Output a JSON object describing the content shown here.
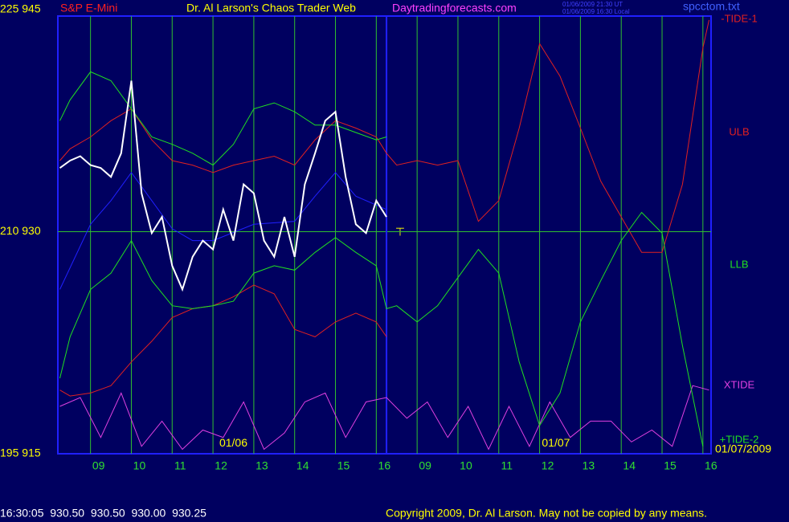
{
  "chart_data": {
    "type": "line",
    "symbol": "S&P E-Mini",
    "title": "Dr. Al Larson's Chaos Trader Web",
    "site": "Daytradingforecasts.com",
    "timestamps": [
      "01/06/2009 21:30 UT",
      "01/06/2009 16:30 Local"
    ],
    "file": "spcctom.txt",
    "date": "01/07/2009",
    "annotations": [
      {
        "x": 12.5,
        "y": 915.7,
        "text": "01/06"
      },
      {
        "x": 20.4,
        "y": 915.7,
        "text": "01/07"
      }
    ],
    "xlim": [
      8.2,
      24.2
    ],
    "ylim": [
      915,
      945
    ],
    "yticks": [
      {
        "value": 915,
        "label": "195 915"
      },
      {
        "value": 930,
        "label": "210 930"
      },
      {
        "value": 945,
        "label": "225 945"
      }
    ],
    "xticks": [
      {
        "value": 9,
        "label": "09"
      },
      10,
      11,
      12,
      13,
      14,
      15,
      16,
      {
        "value": 17,
        "label": "09"
      },
      {
        "value": 18,
        "label": "10"
      },
      {
        "value": 19,
        "label": "11"
      },
      {
        "value": 20,
        "label": "12"
      },
      {
        "value": 21,
        "label": "13"
      },
      {
        "value": 22,
        "label": "14"
      },
      {
        "value": 23,
        "label": "15"
      },
      {
        "value": 24,
        "label": "16"
      }
    ],
    "grid": true,
    "now": 16.25,
    "series": [
      {
        "name": "-TIDE-1",
        "color": "#e02020",
        "x": [
          8.25,
          8.5,
          9,
          9.5,
          10,
          10.5,
          11,
          11.5,
          12,
          12.5,
          13,
          13.5,
          14,
          14.5,
          15,
          15.5,
          16,
          16.25,
          16.5,
          17,
          17.5,
          18,
          18.5,
          19,
          19.5,
          20,
          20.5,
          21,
          21.5,
          22,
          22.5,
          23,
          23.5,
          24,
          24.15
        ],
        "values": [
          934.8,
          935.6,
          936.4,
          937.5,
          938.3,
          936.2,
          934.8,
          934.5,
          934.0,
          934.5,
          934.8,
          935.1,
          934.5,
          936.2,
          937.5,
          937.0,
          936.4,
          935.3,
          934.5,
          934.8,
          934.5,
          934.8,
          930.7,
          932.1,
          937.0,
          942.7,
          940.5,
          937.0,
          933.4,
          931.0,
          928.6,
          928.6,
          933.2,
          942.4,
          944.3
        ]
      },
      {
        "name": "ULB",
        "color": "#e02020",
        "x": [
          8.25,
          8.5,
          9,
          9.5,
          10,
          10.5,
          11,
          11.5,
          12,
          12.5,
          13,
          13.5,
          14,
          14.5,
          15,
          15.5,
          16,
          16.25
        ],
        "values": [
          919.3,
          918.9,
          919.1,
          919.6,
          921.2,
          922.6,
          924.2,
          924.8,
          925.0,
          925.6,
          926.4,
          925.8,
          923.4,
          922.9,
          923.9,
          924.5,
          923.9,
          922.9
        ]
      },
      {
        "name": "LLB",
        "color": "#20e020",
        "x": [
          8.25,
          8.5,
          9,
          9.5,
          10,
          10.5,
          11,
          11.5,
          12,
          12.5,
          13,
          13.5,
          14,
          14.5,
          15,
          15.5,
          16,
          16.25
        ],
        "values": [
          937.5,
          938.9,
          940.8,
          940.2,
          938.3,
          936.4,
          935.9,
          935.3,
          934.5,
          935.9,
          938.3,
          938.7,
          938.1,
          937.2,
          937.2,
          936.7,
          936.2,
          936.4
        ]
      },
      {
        "name": "XTIDE",
        "color": "#e040e0",
        "x": [
          8.25,
          8.75,
          9.25,
          9.75,
          10.25,
          10.75,
          11.25,
          11.75,
          12.25,
          12.75,
          13.25,
          13.75,
          14.25,
          14.75,
          15.25,
          15.75,
          16.25,
          16.75,
          17.25,
          17.75,
          18.25,
          18.75,
          19.25,
          19.75,
          20.25,
          20.75,
          21.25,
          21.75,
          22.25,
          22.75,
          23.25,
          23.75,
          24.15
        ],
        "values": [
          918.2,
          918.8,
          916.1,
          919.1,
          915.5,
          917.2,
          915.3,
          916.6,
          916.1,
          918.5,
          915.3,
          916.4,
          918.5,
          919.1,
          916.1,
          918.5,
          918.8,
          917.4,
          918.5,
          916.1,
          918.2,
          915.3,
          918.2,
          915.5,
          918.5,
          916.1,
          917.2,
          917.2,
          915.8,
          916.6,
          915.5,
          919.6,
          919.3
        ]
      },
      {
        "name": "+TIDE-2",
        "color": "#20e020",
        "x": [
          8.25,
          8.5,
          9,
          9.5,
          10,
          10.5,
          11,
          11.5,
          12,
          12.5,
          13,
          13.5,
          14,
          14.5,
          15,
          15.5,
          16,
          16.25,
          16.5,
          17,
          17.5,
          18,
          18.5,
          19,
          19.5,
          20,
          20.5,
          21,
          21.5,
          22,
          22.5,
          23,
          23.5,
          24
        ],
        "values": [
          920.1,
          922.9,
          926.1,
          927.2,
          929.4,
          926.7,
          925.0,
          924.8,
          925.0,
          925.3,
          927.2,
          927.7,
          927.4,
          928.6,
          929.6,
          928.6,
          927.7,
          924.8,
          925.0,
          923.9,
          925.0,
          926.9,
          928.8,
          927.2,
          921.2,
          916.9,
          919.1,
          923.9,
          926.7,
          929.4,
          931.3,
          929.9,
          922.3,
          915.5
        ]
      },
      {
        "color": "#2020ff",
        "x": [
          8.25,
          9,
          9.5,
          10,
          10.5,
          11,
          11.5,
          12,
          13,
          14,
          14.5,
          15,
          15.5,
          16.25
        ],
        "values": [
          926.1,
          930.5,
          932.1,
          934.0,
          932.1,
          930.2,
          929.4,
          929.4,
          930.5,
          930.7,
          932.4,
          934.0,
          932.4,
          931.5
        ]
      },
      {
        "color": "#ffffff",
        "x": [
          8.25,
          8.5,
          8.75,
          9,
          9.25,
          9.5,
          9.75,
          10,
          10.25,
          10.5,
          10.75,
          11,
          11.25,
          11.5,
          11.75,
          12,
          12.25,
          12.5,
          12.75,
          13,
          13.25,
          13.5,
          13.75,
          14,
          14.25,
          14.5,
          14.75,
          15,
          15.25,
          15.5,
          15.75,
          16,
          16.25
        ],
        "values": [
          934.3,
          934.8,
          935.1,
          934.5,
          934.3,
          933.7,
          935.3,
          940.2,
          932.6,
          929.9,
          931.0,
          927.7,
          926.1,
          928.3,
          929.4,
          928.8,
          931.5,
          929.4,
          933.2,
          932.6,
          929.4,
          928.3,
          931.0,
          928.3,
          933.2,
          935.3,
          937.5,
          938.1,
          933.7,
          930.5,
          929.9,
          932.1,
          931.0
        ]
      }
    ]
  },
  "footer": {
    "quote": "16:30:05  930.50  930.50  930.00  930.25",
    "copyright": "Copyright 2009, Dr. Al Larson. May not be copied by any means."
  }
}
